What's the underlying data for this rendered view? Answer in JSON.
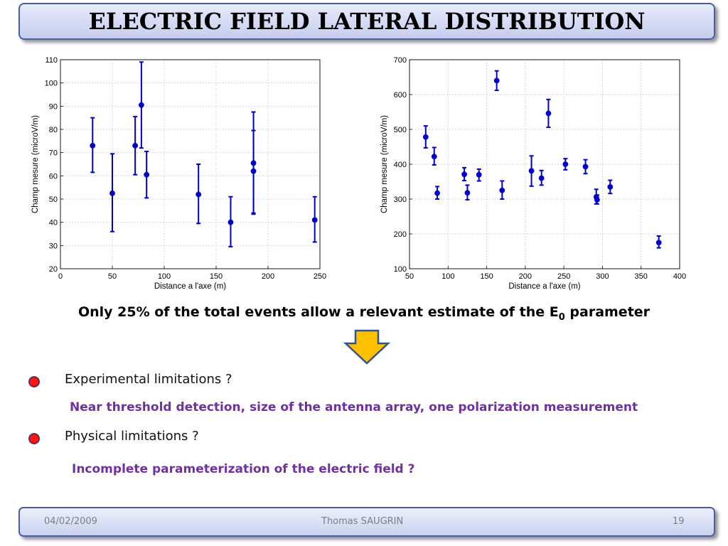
{
  "slide": {
    "title": "ELECTRIC FIELD LATERAL DISTRIBUTION",
    "summary_prefix": "Only 25% of the total events allow a relevant estimate of the E",
    "summary_sub": "0",
    "summary_suffix": " parameter",
    "items": [
      {
        "label": "Experimental limitations ?",
        "detail": "Near threshold detection, size of the antenna array, one polarization measurement"
      },
      {
        "label": "Physical limitations ?",
        "detail": "Incomplete parameterization of the electric field ?"
      }
    ],
    "footer": {
      "date": "04/02/2009",
      "author": "Thomas SAUGRIN",
      "page": "19"
    },
    "colors": {
      "marker": "#0000cc",
      "accent_text": "#7030a0",
      "arrow_fill": "#ffc000",
      "arrow_stroke": "#2f5597",
      "bullet": "#e00000"
    }
  },
  "chart_data": [
    {
      "type": "scatter",
      "xlabel": "Distance a l'axe (m)",
      "ylabel": "Champ mesure (microV/m)",
      "xlim": [
        0,
        250
      ],
      "ylim": [
        20,
        110
      ],
      "xticks": [
        0,
        50,
        100,
        150,
        200,
        250
      ],
      "yticks": [
        20,
        30,
        40,
        50,
        60,
        70,
        80,
        90,
        100,
        110
      ],
      "grid": true,
      "points": [
        {
          "x": 31,
          "y": 73,
          "ylo": 61.5,
          "yhi": 85
        },
        {
          "x": 50,
          "y": 52.5,
          "ylo": 36,
          "yhi": 69.5
        },
        {
          "x": 72,
          "y": 73,
          "ylo": 60.5,
          "yhi": 85.5
        },
        {
          "x": 78,
          "y": 90.5,
          "ylo": 72,
          "yhi": 109
        },
        {
          "x": 83,
          "y": 60.5,
          "ylo": 50.5,
          "yhi": 70.5
        },
        {
          "x": 133,
          "y": 52,
          "ylo": 39.5,
          "yhi": 65
        },
        {
          "x": 164,
          "y": 40,
          "ylo": 29.5,
          "yhi": 51
        },
        {
          "x": 186,
          "y": 65.5,
          "ylo": 43.5,
          "yhi": 87.5
        },
        {
          "x": 186,
          "y": 62,
          "ylo": 44,
          "yhi": 79.5
        },
        {
          "x": 245,
          "y": 41,
          "ylo": 31.5,
          "yhi": 51
        }
      ]
    },
    {
      "type": "scatter",
      "xlabel": "Distance a l'axe (m)",
      "ylabel": "Champ mesure (microV/m)",
      "xlim": [
        50,
        400
      ],
      "ylim": [
        100,
        700
      ],
      "xticks": [
        50,
        100,
        150,
        200,
        250,
        300,
        350,
        400
      ],
      "yticks": [
        100,
        200,
        300,
        400,
        500,
        600,
        700
      ],
      "grid": true,
      "points": [
        {
          "x": 71,
          "y": 478,
          "ylo": 447,
          "yhi": 510
        },
        {
          "x": 82,
          "y": 422,
          "ylo": 398,
          "yhi": 448
        },
        {
          "x": 86,
          "y": 317,
          "ylo": 300,
          "yhi": 336
        },
        {
          "x": 121,
          "y": 371,
          "ylo": 353,
          "yhi": 390
        },
        {
          "x": 125,
          "y": 318,
          "ylo": 298,
          "yhi": 340
        },
        {
          "x": 140,
          "y": 370,
          "ylo": 352,
          "yhi": 386
        },
        {
          "x": 163,
          "y": 640,
          "ylo": 612,
          "yhi": 668
        },
        {
          "x": 170,
          "y": 325,
          "ylo": 300,
          "yhi": 352
        },
        {
          "x": 208,
          "y": 381,
          "ylo": 337,
          "yhi": 424
        },
        {
          "x": 221,
          "y": 360,
          "ylo": 340,
          "yhi": 382
        },
        {
          "x": 230,
          "y": 546,
          "ylo": 506,
          "yhi": 586
        },
        {
          "x": 252,
          "y": 400,
          "ylo": 384,
          "yhi": 416
        },
        {
          "x": 278,
          "y": 393,
          "ylo": 373,
          "yhi": 413
        },
        {
          "x": 292,
          "y": 306,
          "ylo": 286,
          "yhi": 328
        },
        {
          "x": 293,
          "y": 298,
          "ylo": 286,
          "yhi": 312
        },
        {
          "x": 310,
          "y": 335,
          "ylo": 316,
          "yhi": 354
        },
        {
          "x": 373,
          "y": 175,
          "ylo": 160,
          "yhi": 194
        }
      ]
    }
  ]
}
